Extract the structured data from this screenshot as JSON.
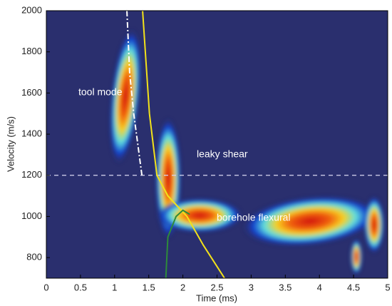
{
  "chart_data": {
    "type": "contour",
    "xlabel": "Time (ms)",
    "ylabel": "Velocity (m/s)",
    "xlim": [
      0,
      5
    ],
    "ylim": [
      700,
      2000
    ],
    "xticks": [
      0,
      0.5,
      1,
      1.5,
      2,
      2.5,
      3,
      3.5,
      4,
      4.5,
      5
    ],
    "yticks": [
      800,
      1000,
      1200,
      1400,
      1600,
      1800,
      2000
    ],
    "annotations": [
      "tool mode",
      "leaky shear",
      "borehole flexural"
    ],
    "hline": 1200,
    "series": [
      {
        "color": "#f2e21a",
        "dash": "solid",
        "x": [
          1.41,
          1.51,
          1.62,
          1.78,
          2.06,
          2.3,
          2.61
        ],
        "values": [
          2000,
          1500,
          1200,
          1100,
          1000,
          860,
          700
        ]
      },
      {
        "color": "#ffffff",
        "dash": "dashdot",
        "x": [
          1.18,
          1.22,
          1.28,
          1.4
        ],
        "values": [
          2000,
          1700,
          1500,
          1200
        ]
      },
      {
        "color": "#2e8b3a",
        "dash": "solid",
        "x": [
          1.75,
          1.78,
          1.9,
          2.0,
          2.1
        ],
        "values": [
          700,
          900,
          1000,
          1030,
          1010
        ]
      }
    ]
  }
}
